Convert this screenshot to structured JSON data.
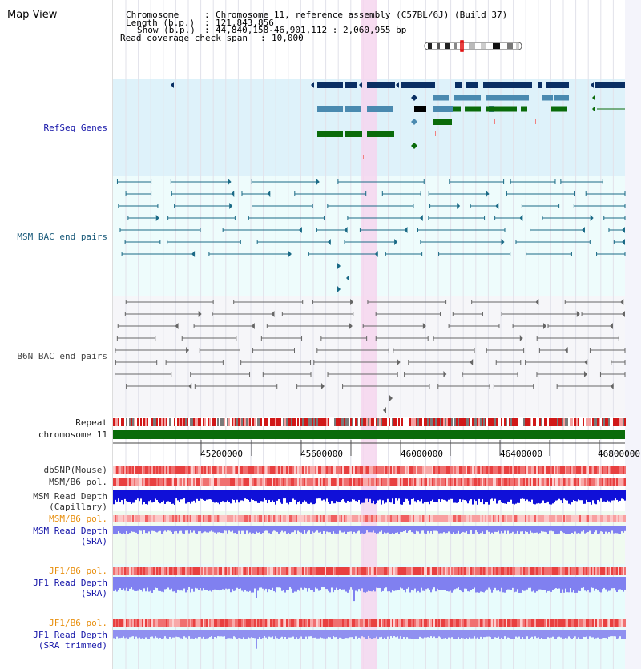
{
  "page_title": "Map View",
  "info": {
    "chromosome_label": "Chromosome",
    "chromosome_value": "Chromosome 11, reference assembly (C57BL/6J) (Build 37)",
    "length_label": "Length (b.p.)",
    "length_value": "121,843,856",
    "show_label": "Show (b.p.)",
    "show_value": "44,840,158-46,901,112 : 2,060,955 bp",
    "coverage_label": "Read coverage check span",
    "coverage_value": "10,000"
  },
  "tracks": {
    "refseq_genes": "RefSeq Genes",
    "msm_bac": "MSM BAC end pairs",
    "b6n_bac": "B6N BAC end pairs",
    "repeat": "Repeat",
    "chromosome": "chromosome 11",
    "dbsnp": "dbSNP(Mouse)",
    "msm_b6_pol_1": "MSM/B6 pol.",
    "msm_depth_cap_1": "MSM Read Depth",
    "msm_depth_cap_2": "(Capillary)",
    "msm_b6_pol_2": "MSM/B6 pol.",
    "msm_depth_sra_1": "MSM Read Depth",
    "msm_depth_sra_2": "(SRA)",
    "jf1_pol_1": "JF1/B6 pol.",
    "jf1_depth_1": "JF1 Read Depth",
    "jf1_depth_2": "(SRA)",
    "jf1_pol_2": "JF1/B6 pol.",
    "jf1_trim_1": "JF1 Read Depth",
    "jf1_trim_2": "(SRA trimmed)"
  },
  "axis": {
    "ticks": [
      "45200000",
      "45600000",
      "46000000",
      "46400000",
      "46800000"
    ]
  },
  "colors": {
    "genes_bg": "#def2fa",
    "msm_bg": "#eefcfc",
    "b6n_bg": "#f6f6f9",
    "highlight": "#f6d6ee",
    "gene_blue_dark": "#0a2f63",
    "gene_blue": "#4a8ab0",
    "gene_green": "#0a6b0a",
    "msm_line": "#1a6a86",
    "b6n_line": "#666666",
    "depth_blue": "#1010d8",
    "depth_light": "#8080f0",
    "label_blue": "#1515a8",
    "label_orange": "#e89010",
    "label_gray": "#333333"
  }
}
